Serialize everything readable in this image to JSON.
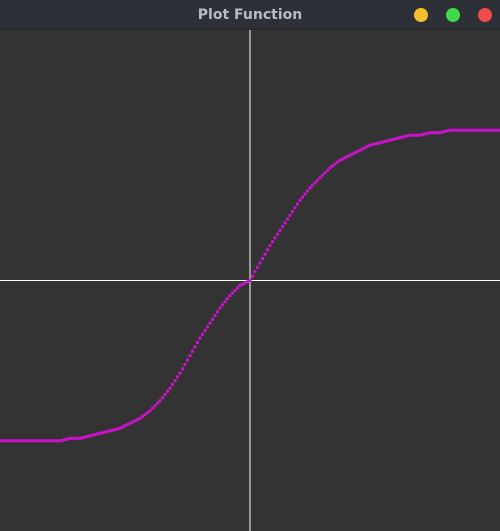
{
  "window": {
    "title": "Plot Function",
    "buttons": {
      "minimize_color": "#f5c02b",
      "maximize_color": "#3fd94a",
      "close_color": "#ef4d4d"
    }
  },
  "chart_data": {
    "type": "scatter",
    "title": "",
    "xlabel": "",
    "ylabel": "",
    "xlim": [
      -1,
      1
    ],
    "ylim": [
      -1,
      1
    ],
    "grid": false,
    "axes_color": "#ffffff",
    "background": "#333333",
    "series": [
      {
        "color": "#cc11cc",
        "x": [
          -1.0,
          -0.96,
          -0.92,
          -0.88,
          -0.84,
          -0.8,
          -0.76,
          -0.72,
          -0.68,
          -0.64,
          -0.6,
          -0.56,
          -0.52,
          -0.48,
          -0.44,
          -0.4,
          -0.36,
          -0.32,
          -0.28,
          -0.24,
          -0.2,
          -0.16,
          -0.12,
          -0.08,
          -0.04,
          0.0,
          0.04,
          0.08,
          0.12,
          0.16,
          0.2,
          0.24,
          0.28,
          0.32,
          0.36,
          0.4,
          0.44,
          0.48,
          0.52,
          0.56,
          0.6,
          0.64,
          0.68,
          0.72,
          0.76,
          0.8,
          0.84,
          0.88,
          0.92,
          0.96,
          1.0
        ],
        "y": [
          -0.64,
          -0.64,
          -0.64,
          -0.64,
          -0.64,
          -0.64,
          -0.64,
          -0.63,
          -0.63,
          -0.62,
          -0.61,
          -0.6,
          -0.59,
          -0.57,
          -0.55,
          -0.52,
          -0.48,
          -0.43,
          -0.37,
          -0.3,
          -0.23,
          -0.17,
          -0.11,
          -0.06,
          -0.02,
          0.0,
          0.07,
          0.14,
          0.2,
          0.26,
          0.32,
          0.37,
          0.41,
          0.45,
          0.48,
          0.5,
          0.52,
          0.54,
          0.55,
          0.56,
          0.57,
          0.58,
          0.58,
          0.59,
          0.59,
          0.6,
          0.6,
          0.6,
          0.6,
          0.6,
          0.6
        ]
      }
    ]
  }
}
